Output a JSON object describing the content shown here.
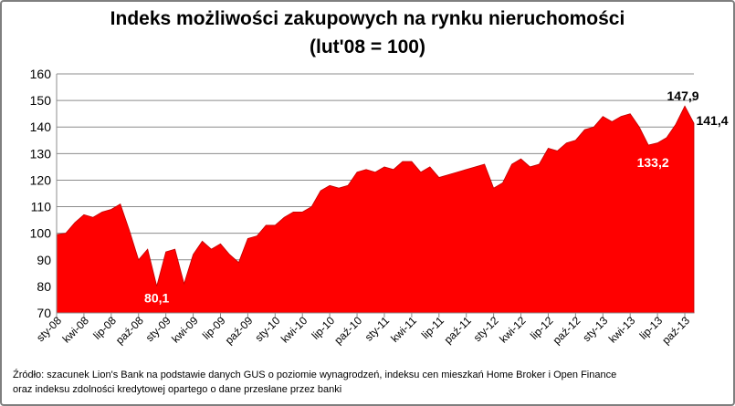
{
  "chart_data": {
    "type": "area",
    "title": "Indeks możliwości zakupowych na rynku nieruchomości",
    "subtitle": "(lut'08 = 100)",
    "xlabel": "",
    "ylabel": "",
    "ylim": [
      70,
      160
    ],
    "yticks": [
      "70",
      "80",
      "90",
      "100",
      "110",
      "120",
      "130",
      "140",
      "150",
      "160"
    ],
    "grid": true,
    "fill_color": "#ff0000",
    "x_tick_labels": [
      "sty-08",
      "kwi-08",
      "lip-08",
      "paź-08",
      "sty-09",
      "kwi-09",
      "lip-09",
      "paź-09",
      "sty-10",
      "kwi-10",
      "lip-10",
      "paź-10",
      "sty-11",
      "kwi-11",
      "lip-11",
      "paź-11",
      "sty-12",
      "kwi-12",
      "lip-12",
      "paź-12",
      "sty-13",
      "kwi-13",
      "lip-13",
      "paź-13"
    ],
    "tick_step": 3,
    "values": [
      99.5,
      100,
      104,
      107,
      106,
      108,
      109,
      111,
      101,
      90,
      94,
      80.1,
      93,
      94,
      81,
      92,
      97,
      94,
      96,
      92,
      89,
      98,
      99,
      103,
      103,
      106,
      108,
      108,
      110,
      116,
      118,
      117,
      118,
      123,
      124,
      123,
      125,
      124,
      127,
      127,
      123,
      125,
      121,
      122,
      123,
      124,
      125,
      126,
      117,
      119,
      126,
      128,
      125,
      126,
      132,
      131,
      134,
      135,
      139,
      140,
      144,
      142,
      144,
      145,
      140,
      133.2,
      134,
      136,
      141,
      147.9,
      141.4
    ],
    "annotations": [
      {
        "text": "80,1",
        "index": 11,
        "value": 80.1,
        "color": "#ffffff"
      },
      {
        "text": "133,2",
        "index": 65,
        "value": 133.2,
        "color": "#ffffff"
      },
      {
        "text": "147,9",
        "index": 69,
        "value": 147.9,
        "color": "#000000"
      },
      {
        "text": "141,4",
        "index": 70,
        "value": 141.4,
        "color": "#000000"
      }
    ]
  },
  "source": {
    "line1": "Źródło: szacunek Lion's Bank na podstawie danych GUS o poziomie wynagrodzeń, indeksu cen mieszkań Home Broker i Open Finance",
    "line2": "oraz indeksu zdolności kredytowej opartego o dane przesłane przez banki"
  }
}
